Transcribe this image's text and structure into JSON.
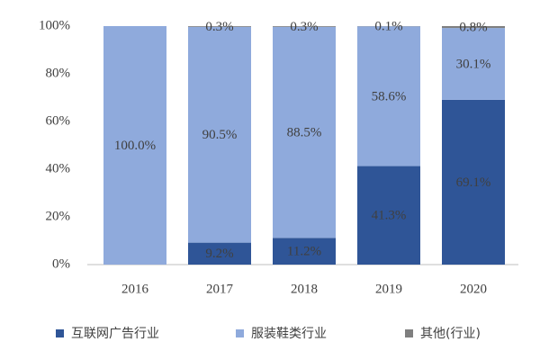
{
  "chart_data": {
    "type": "stacked_bar",
    "categories": [
      "2016",
      "2017",
      "2018",
      "2019",
      "2020"
    ],
    "series": [
      {
        "name": "互联网广告行业",
        "color": "#2f5597",
        "values": [
          null,
          9.2,
          11.2,
          41.3,
          69.1
        ],
        "value_labels": [
          null,
          "9.2%",
          "11.2%",
          "41.3%",
          "69.1%"
        ]
      },
      {
        "name": "服装鞋类行业",
        "color": "#8faadc",
        "values": [
          100.0,
          90.5,
          88.5,
          58.6,
          30.1
        ],
        "value_labels": [
          "100.0%",
          "90.5%",
          "88.5%",
          "58.6%",
          "30.1%"
        ]
      },
      {
        "name": "其他(行业)",
        "color": "#7f7f7f",
        "values": [
          null,
          0.3,
          0.3,
          0.1,
          0.8
        ],
        "value_labels": [
          null,
          "0.3%",
          "0.3%",
          "0.1%",
          "0.8%"
        ]
      }
    ],
    "ylim": [
      0,
      100
    ],
    "yticks": [
      {
        "value": 0,
        "label": "0%"
      },
      {
        "value": 20,
        "label": "20%"
      },
      {
        "value": 40,
        "label": "40%"
      },
      {
        "value": 60,
        "label": "60%"
      },
      {
        "value": 80,
        "label": "80%"
      },
      {
        "value": 100,
        "label": "100%"
      }
    ],
    "grid": false
  }
}
